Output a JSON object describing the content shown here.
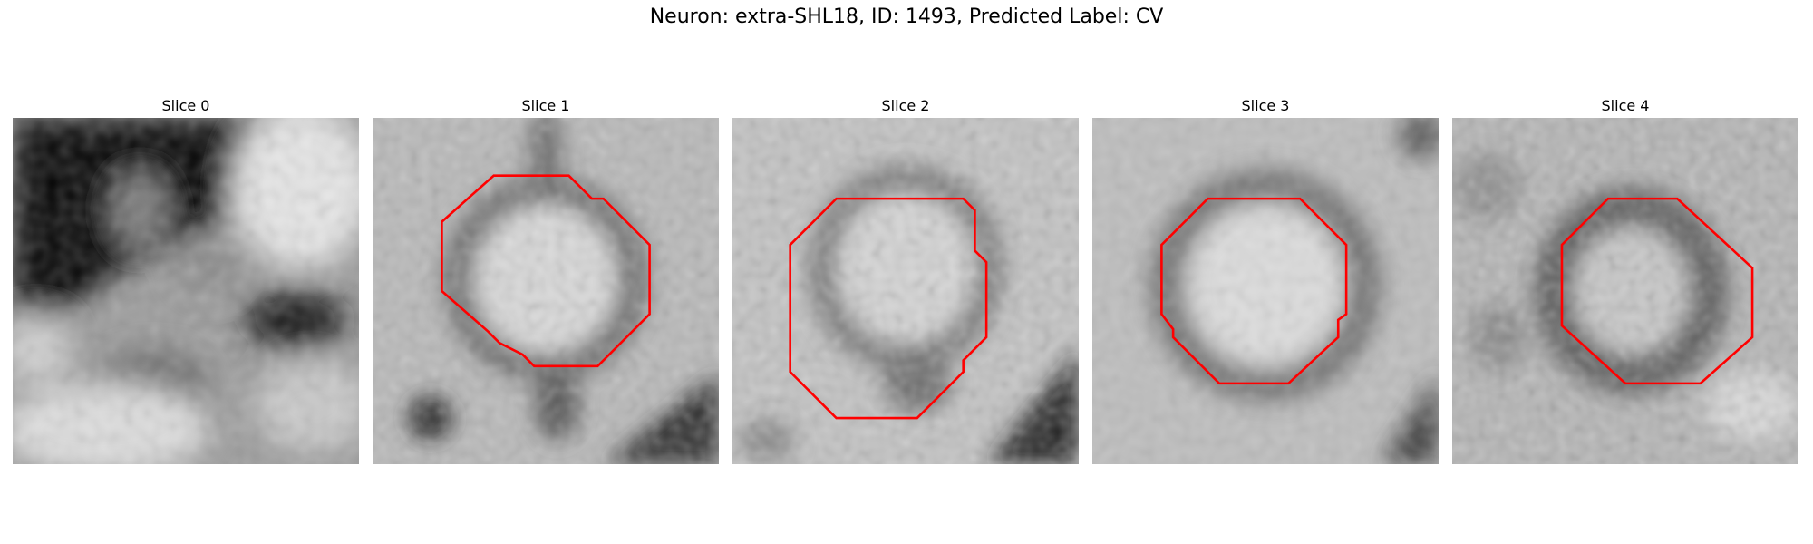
{
  "figure": {
    "title": "Neuron: extra-SHL18, ID: 1493, Predicted Label: CV"
  },
  "panels": [
    {
      "title": "Slice 0",
      "has_contour": false
    },
    {
      "title": "Slice 1",
      "has_contour": true
    },
    {
      "title": "Slice 2",
      "has_contour": true
    },
    {
      "title": "Slice 3",
      "has_contour": true
    },
    {
      "title": "Slice 4",
      "has_contour": true
    }
  ],
  "colors": {
    "contour": "#ff0000",
    "colormap": "grayscale"
  }
}
